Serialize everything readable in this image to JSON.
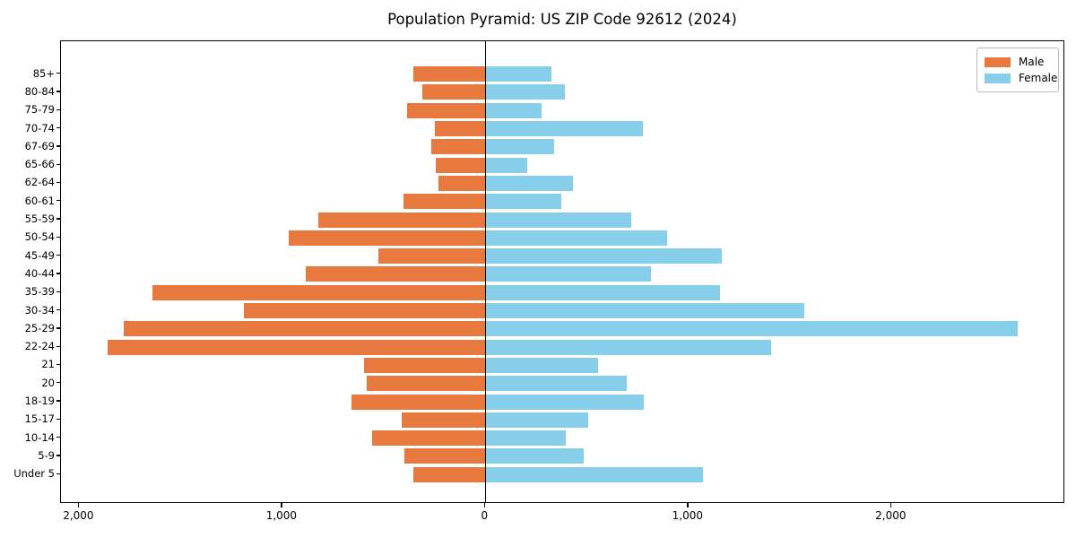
{
  "title": "Population Pyramid: US ZIP Code 92612 (2024)",
  "legend": {
    "position": "upper right",
    "entries": [
      {
        "label": "Male",
        "color": "#E8793E"
      },
      {
        "label": "Female",
        "color": "#87CEEB"
      }
    ]
  },
  "colors": {
    "male": "#E8793E",
    "female": "#87CEEB",
    "zero_line": "#000000",
    "axis": "#000000",
    "background": "#ffffff",
    "legend_border": "#b9b9b9"
  },
  "chart_data": {
    "type": "bar",
    "subtype": "population-pyramid-horizontal",
    "title": "Population Pyramid: US ZIP Code 92612 (2024)",
    "xlabel": "",
    "ylabel": "",
    "grid": false,
    "legend_position": "upper right",
    "note": "Male values are magnitudes plotted to the left of zero; Female plotted to the right. Values estimated from axis scale.",
    "categories_top_to_bottom": [
      "85+",
      "80-84",
      "75-79",
      "70-74",
      "67-69",
      "65-66",
      "62-64",
      "60-61",
      "55-59",
      "50-54",
      "45-49",
      "40-44",
      "35-39",
      "30-34",
      "25-29",
      "22-24",
      "21",
      "20",
      "18-19",
      "15-17",
      "10-14",
      "5-9",
      "Under 5"
    ],
    "series": [
      {
        "name": "Male",
        "side": "left",
        "color": "#E8793E",
        "values": [
          355,
          310,
          385,
          250,
          267,
          245,
          230,
          403,
          825,
          970,
          525,
          885,
          1640,
          1190,
          1780,
          1860,
          597,
          585,
          660,
          412,
          558,
          400,
          357
        ]
      },
      {
        "name": "Female",
        "side": "right",
        "color": "#87CEEB",
        "values": [
          325,
          390,
          278,
          775,
          340,
          207,
          430,
          375,
          720,
          895,
          1165,
          815,
          1155,
          1570,
          2620,
          1405,
          555,
          695,
          780,
          506,
          397,
          485,
          1070
        ]
      }
    ],
    "xlim": [
      -2090,
      2855
    ],
    "x_ticks": {
      "values": [
        -2000,
        -1000,
        0,
        1000,
        2000
      ],
      "labels": [
        "2,000",
        "1,000",
        "0",
        "1,000",
        "2,000"
      ]
    }
  }
}
